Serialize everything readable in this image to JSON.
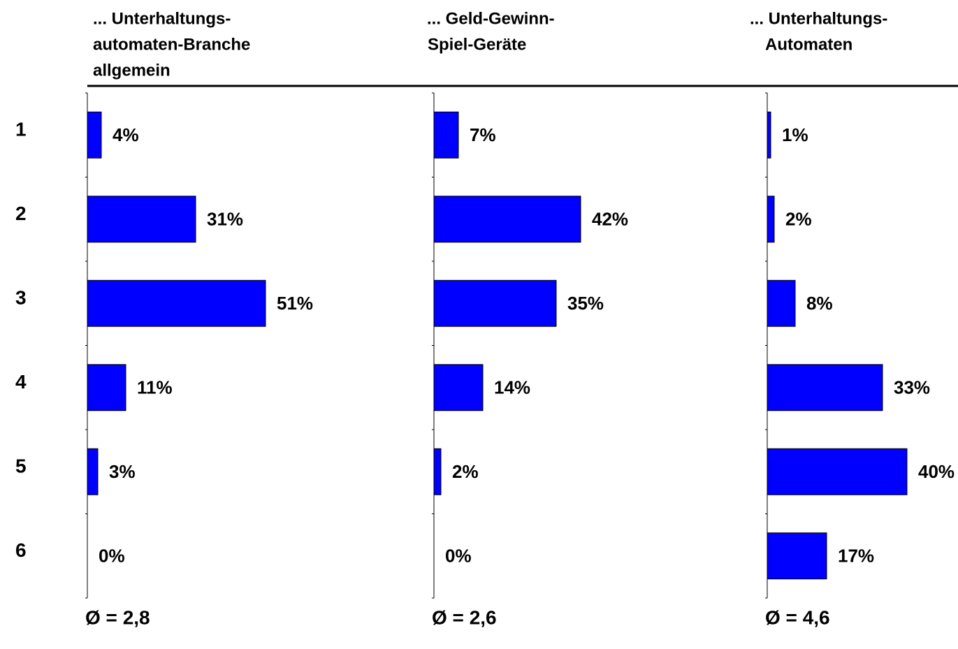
{
  "chart_data": [
    {
      "type": "bar",
      "orientation": "horizontal",
      "title": [
        "... Unterhaltungs-",
        "automaten-Branche",
        "allgemein"
      ],
      "categories": [
        "1",
        "2",
        "3",
        "4",
        "5",
        "6"
      ],
      "values": [
        4,
        31,
        51,
        11,
        3,
        0
      ],
      "value_labels": [
        "4%",
        "31%",
        "51%",
        "11%",
        "3%",
        "0%"
      ],
      "color": "#0000ff",
      "xlim": [
        0,
        100
      ],
      "annotation": "Ø = 2,8"
    },
    {
      "type": "bar",
      "orientation": "horizontal",
      "title": [
        "... Geld-Gewinn-",
        "Spiel-Geräte"
      ],
      "values": [
        7,
        42,
        35,
        14,
        2,
        0
      ],
      "value_labels": [
        "7%",
        "42%",
        "35%",
        "14%",
        "2%",
        "0%"
      ],
      "color": "#0000ff",
      "xlim": [
        0,
        100
      ],
      "annotation": "Ø = 2,6"
    },
    {
      "type": "bar",
      "orientation": "horizontal",
      "title": [
        "... Unterhaltungs-",
        "Automaten"
      ],
      "values": [
        1,
        2,
        8,
        33,
        40,
        17
      ],
      "value_labels": [
        "1%",
        "2%",
        "8%",
        "33%",
        "40%",
        "17%"
      ],
      "color": "#0000ff",
      "xlim": [
        0,
        100
      ],
      "annotation": "Ø = 4,6"
    }
  ]
}
